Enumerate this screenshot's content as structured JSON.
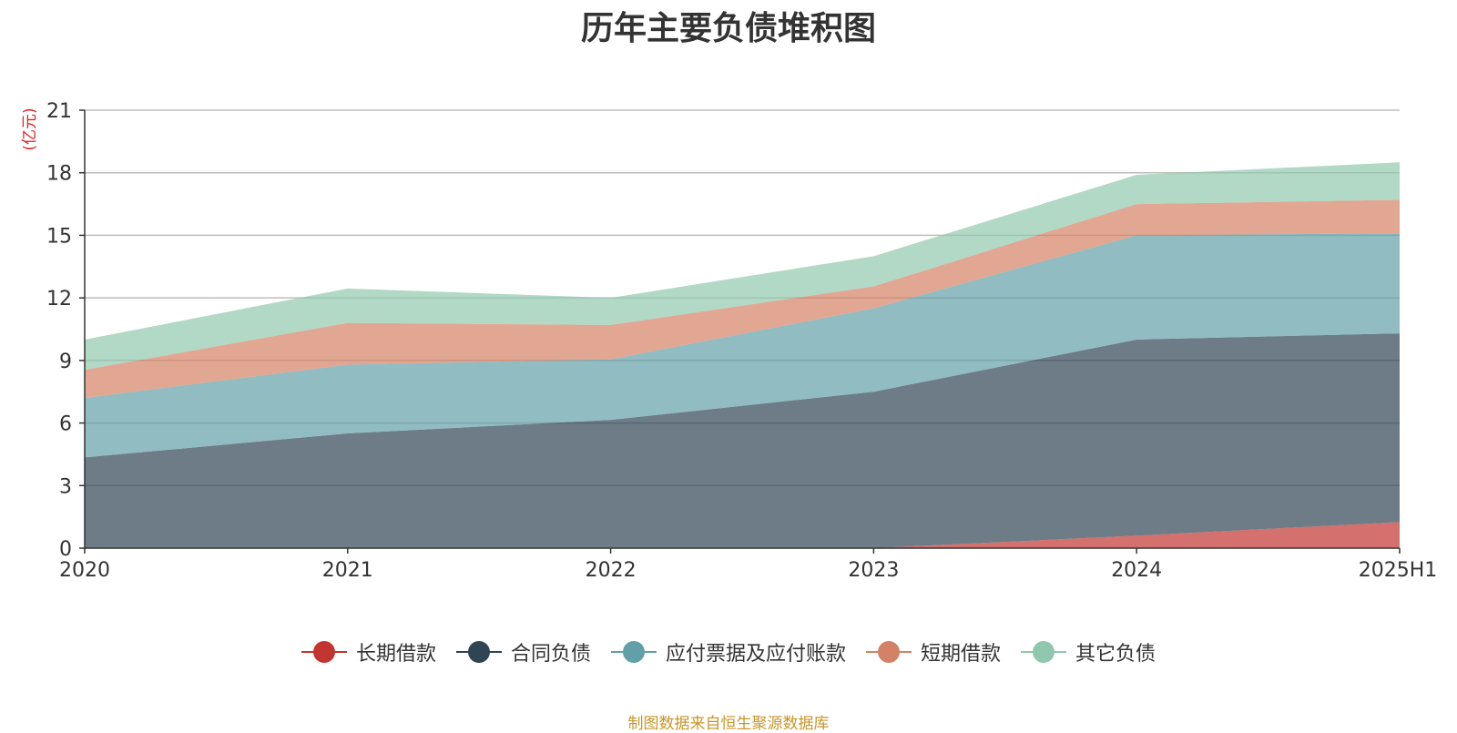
{
  "chart_data": {
    "type": "area",
    "stacked": true,
    "title": "历年主要负债堆积图",
    "ylabel": "(亿元)",
    "xlabel": "",
    "ylim": [
      0,
      21
    ],
    "yticks": [
      0,
      3,
      6,
      9,
      12,
      15,
      18,
      21
    ],
    "categories": [
      "2020",
      "2021",
      "2022",
      "2023",
      "2024",
      "2025H1"
    ],
    "grid": true,
    "legend_position": "bottom",
    "series": [
      {
        "name": "长期借款",
        "color": "#c23531",
        "values": [
          0,
          0,
          0,
          0,
          0.6,
          1.25
        ]
      },
      {
        "name": "合同负债",
        "color": "#2f4554",
        "values": [
          4.35,
          5.5,
          6.15,
          7.5,
          9.4,
          9.05
        ]
      },
      {
        "name": "应付票据及应付账款",
        "color": "#61a0a8",
        "values": [
          2.85,
          3.3,
          2.9,
          4.0,
          5.0,
          4.8
        ]
      },
      {
        "name": "短期借款",
        "color": "#d48265",
        "values": [
          1.35,
          2.0,
          1.65,
          1.05,
          1.5,
          1.6
        ]
      },
      {
        "name": "其它负债",
        "color": "#91c7ae",
        "values": [
          1.45,
          1.65,
          1.3,
          1.45,
          1.4,
          1.8
        ]
      }
    ]
  },
  "source_note": "制图数据来自恒生聚源数据库"
}
